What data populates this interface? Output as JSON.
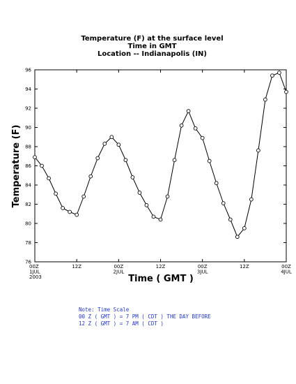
{
  "chart_data": {
    "type": "line",
    "title_lines": [
      "Temperature (F) at the surface level",
      "Time in GMT",
      "Location -- Indianapolis (IN)"
    ],
    "xlabel": "Time ( GMT )",
    "ylabel": "Temperature (F)",
    "ylim": [
      76,
      96
    ],
    "yticks": [
      76,
      78,
      80,
      82,
      84,
      86,
      88,
      90,
      92,
      94,
      96
    ],
    "xlim": [
      0,
      72
    ],
    "xticks": [
      {
        "x": 0,
        "label": "00Z",
        "sub": "1JUL",
        "sub2": "2003"
      },
      {
        "x": 12,
        "label": "12Z",
        "sub": "",
        "sub2": ""
      },
      {
        "x": 24,
        "label": "00Z",
        "sub": "2JUL",
        "sub2": ""
      },
      {
        "x": 36,
        "label": "12Z",
        "sub": "",
        "sub2": ""
      },
      {
        "x": 48,
        "label": "00Z",
        "sub": "3JUL",
        "sub2": ""
      },
      {
        "x": 60,
        "label": "12Z",
        "sub": "",
        "sub2": ""
      },
      {
        "x": 72,
        "label": "00Z",
        "sub": "4JUL",
        "sub2": ""
      }
    ],
    "grid": false,
    "series": [
      {
        "x": [
          0,
          2,
          4,
          6,
          8,
          10,
          12,
          14,
          16,
          18,
          20,
          22,
          24,
          26,
          28,
          30,
          32,
          34,
          36,
          38,
          40,
          42,
          44,
          46,
          48,
          50,
          52,
          54,
          56,
          58,
          60,
          62,
          64,
          66,
          68,
          70,
          72
        ],
        "y": [
          86.9,
          86.0,
          84.7,
          83.1,
          81.6,
          81.2,
          80.9,
          82.8,
          84.9,
          86.8,
          88.3,
          89.0,
          88.2,
          86.6,
          84.8,
          83.2,
          81.9,
          80.7,
          80.4,
          82.8,
          86.6,
          90.2,
          91.7,
          89.9,
          88.9,
          86.5,
          84.2,
          82.1,
          80.4,
          78.6,
          79.5,
          82.5,
          87.6,
          92.9,
          95.4,
          95.7,
          93.7
        ]
      }
    ]
  },
  "note": {
    "lines": [
      "Note: Time Scale",
      "00 Z ( GMT ) = 7 PM ( CDT ) THE DAY BEFORE",
      "12 Z ( GMT ) = 7 AM ( CDT )"
    ]
  }
}
